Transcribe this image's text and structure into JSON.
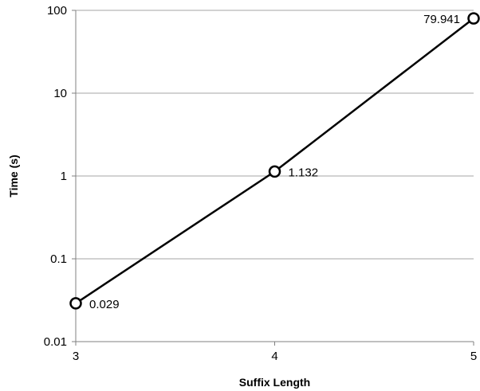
{
  "chart_data": {
    "type": "line",
    "title": "",
    "xlabel": "Suffix Length",
    "ylabel": "Time (s)",
    "x": [
      3,
      4,
      5
    ],
    "xlim": [
      3,
      5
    ],
    "x_ticks": [
      3,
      4,
      5
    ],
    "y_scale": "log",
    "ylim": [
      0.01,
      100
    ],
    "y_ticks": [
      0.01,
      0.1,
      1,
      10,
      100
    ],
    "y_tick_labels": [
      "0.01",
      "0.1",
      "1",
      "10",
      "100"
    ],
    "grid": true,
    "legend": "none",
    "series": [
      {
        "values": [
          0.029,
          1.132,
          79.941
        ],
        "data_labels": [
          "0.029",
          "1.132",
          "79.941"
        ],
        "color": "#000000"
      }
    ]
  }
}
